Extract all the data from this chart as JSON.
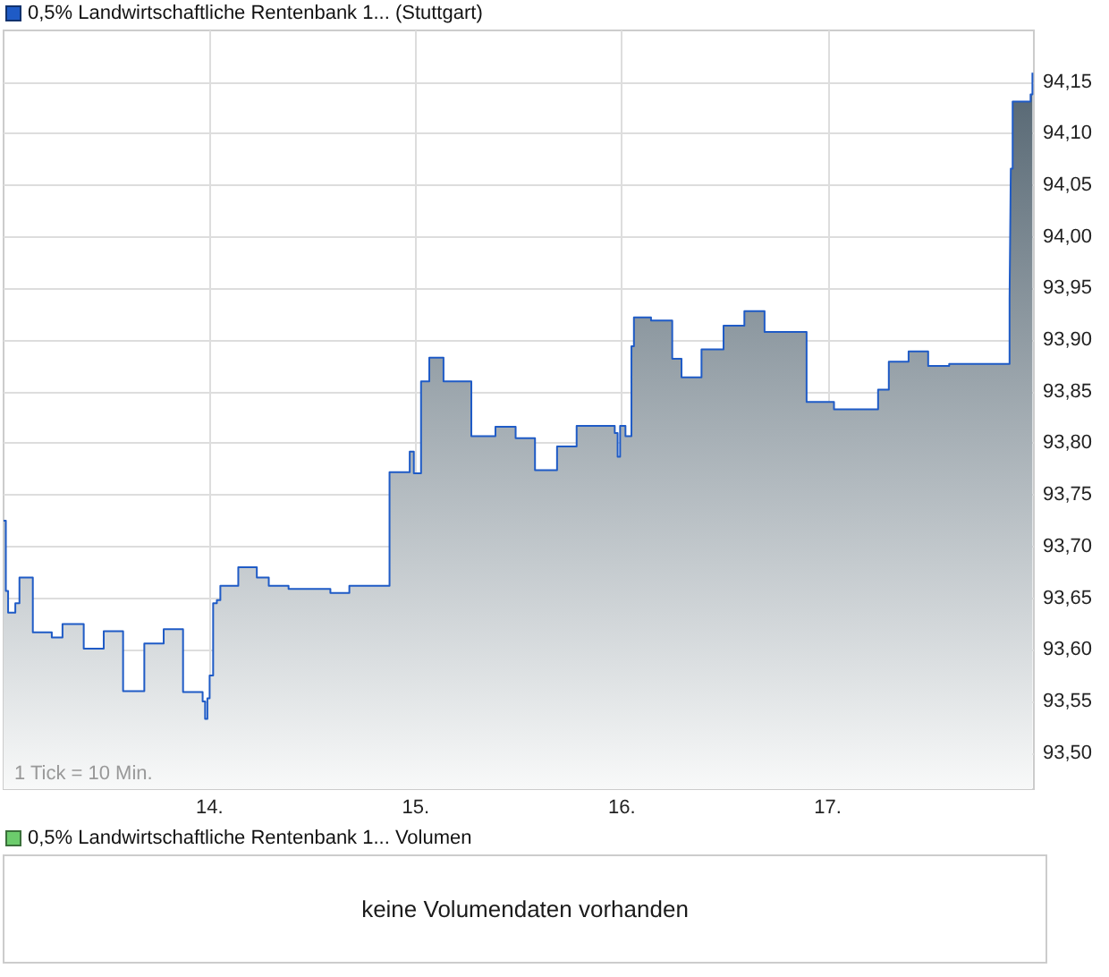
{
  "chart_data": [
    {
      "type": "area",
      "legend": "top left",
      "grid": true,
      "series": [
        {
          "name": "0,5% Landwirtschaftliche Rentenbank 1... (Stuttgart)",
          "color": "#1f5bc6",
          "values": [
            93.725,
            93.725,
            93.657,
            93.657,
            93.636,
            93.636,
            93.645,
            93.645,
            93.67,
            93.67,
            93.617,
            93.617,
            93.612,
            93.612,
            93.625,
            93.625,
            93.601,
            93.601,
            93.618,
            93.618,
            93.56,
            93.56,
            93.606,
            93.606,
            93.62,
            93.62,
            93.559,
            93.559,
            93.55,
            93.55,
            93.533,
            93.533,
            93.553,
            93.553,
            93.575,
            93.575,
            93.645,
            93.645,
            93.648,
            93.648,
            93.662,
            93.662,
            93.68,
            93.68,
            93.67,
            93.67,
            93.662,
            93.662,
            93.659,
            93.659,
            93.655,
            93.655,
            93.662,
            93.662,
            93.772,
            93.772,
            93.792,
            93.792,
            93.771,
            93.771,
            93.86,
            93.86,
            93.883,
            93.883,
            93.86,
            93.86,
            93.807,
            93.807,
            93.816,
            93.816,
            93.805,
            93.805,
            93.774,
            93.774,
            93.797,
            93.797,
            93.817,
            93.817,
            93.81,
            93.81,
            93.787,
            93.787,
            93.817,
            93.817,
            93.807,
            93.807,
            93.894,
            93.894,
            93.922,
            93.922,
            93.919,
            93.919,
            93.882,
            93.882,
            93.864,
            93.864,
            93.891,
            93.891,
            93.914,
            93.914,
            93.928,
            93.928,
            93.908,
            93.908,
            93.84,
            93.84,
            93.833,
            93.833,
            93.852,
            93.852,
            93.879,
            93.879,
            93.889,
            93.889,
            93.875,
            93.875,
            93.877,
            93.877,
            93.94,
            93.94,
            94.066,
            94.066,
            94.131,
            94.131,
            94.138,
            94.138,
            94.159
          ]
        }
      ],
      "x": [
        13.0,
        13.011,
        13.011,
        13.022,
        13.022,
        13.057,
        13.057,
        13.077,
        13.077,
        13.142,
        13.142,
        13.234,
        13.234,
        13.286,
        13.286,
        13.389,
        13.389,
        13.486,
        13.486,
        13.58,
        13.58,
        13.683,
        13.683,
        13.777,
        13.777,
        13.871,
        13.871,
        13.966,
        13.966,
        13.978,
        13.978,
        13.989,
        13.989,
        14.0,
        14.0,
        14.017,
        14.017,
        14.035,
        14.035,
        14.052,
        14.052,
        14.139,
        14.139,
        14.229,
        14.229,
        14.287,
        14.287,
        14.383,
        14.383,
        14.586,
        14.586,
        14.678,
        14.678,
        14.873,
        14.873,
        14.971,
        14.971,
        14.991,
        14.991,
        15.026,
        15.026,
        15.066,
        15.066,
        15.135,
        15.135,
        15.27,
        15.27,
        15.387,
        15.387,
        15.485,
        15.485,
        15.579,
        15.579,
        15.686,
        15.686,
        15.781,
        15.781,
        15.966,
        15.966,
        15.98,
        15.98,
        15.992,
        15.992,
        16.018,
        16.018,
        16.047,
        16.047,
        16.059,
        16.059,
        16.142,
        16.142,
        16.245,
        16.245,
        16.29,
        16.29,
        16.387,
        16.387,
        16.494,
        16.494,
        16.595,
        16.595,
        16.693,
        16.693,
        16.897,
        16.897,
        17.03,
        17.03,
        17.244,
        17.244,
        17.296,
        17.296,
        17.392,
        17.392,
        17.487,
        17.487,
        17.589,
        17.589,
        17.882,
        17.882,
        17.888,
        17.888,
        17.897,
        17.897,
        17.984,
        17.984,
        17.993,
        17.993
      ],
      "xlim": [
        13,
        18
      ],
      "xticks": [
        {
          "value": 14,
          "label": "14."
        },
        {
          "value": 15,
          "label": "15."
        },
        {
          "value": 16,
          "label": "16."
        },
        {
          "value": 17,
          "label": "17."
        }
      ],
      "ylim": [
        93.465,
        94.2
      ],
      "yticks": [
        {
          "value": 93.5,
          "label": "93,50"
        },
        {
          "value": 93.55,
          "label": "93,55"
        },
        {
          "value": 93.6,
          "label": "93,60"
        },
        {
          "value": 93.65,
          "label": "93,65"
        },
        {
          "value": 93.7,
          "label": "93,70"
        },
        {
          "value": 93.75,
          "label": "93,75"
        },
        {
          "value": 93.8,
          "label": "93,80"
        },
        {
          "value": 93.85,
          "label": "93,85"
        },
        {
          "value": 93.9,
          "label": "93,90"
        },
        {
          "value": 93.95,
          "label": "93,95"
        },
        {
          "value": 94.0,
          "label": "94,00"
        },
        {
          "value": 94.05,
          "label": "94,05"
        },
        {
          "value": 94.1,
          "label": "94,10"
        },
        {
          "value": 94.15,
          "label": "94,15"
        }
      ],
      "annotations": [
        "1 Tick = 10 Min."
      ]
    },
    {
      "type": "other",
      "legend": "top left",
      "series": [
        {
          "name": "0,5% Landwirtschaftliche Rentenbank 1... Volumen",
          "color": "#6ccc6c"
        }
      ],
      "annotations": [
        "keine Volumendaten vorhanden"
      ]
    }
  ]
}
